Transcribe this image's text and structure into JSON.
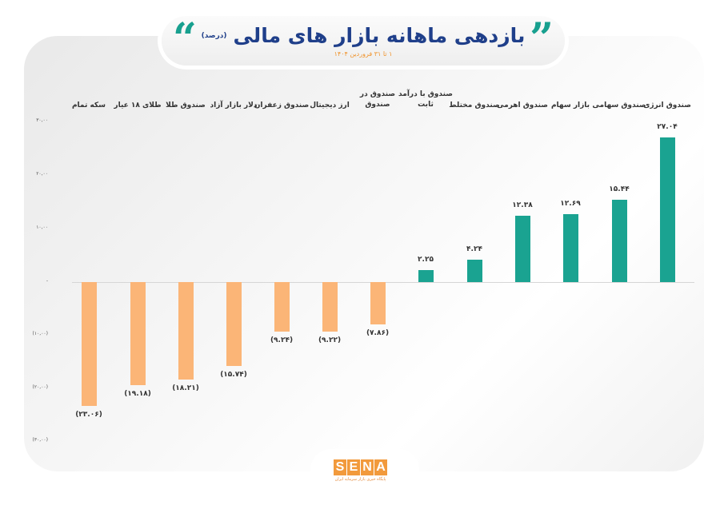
{
  "header": {
    "title": "بازدهی ماهانه بازار های مالی",
    "unit": "(درصد)",
    "subtitle": "۱ تا ۳۱ فروردین ۱۴۰۴",
    "quote_icon": "quote-marks-icon"
  },
  "colors": {
    "positive": "#1aa391",
    "negative": "#fbb577",
    "title": "#1f3f8a",
    "accent": "#f0932b"
  },
  "y_ticks": [
    "۳۰,۰۰",
    "۲۰,۰۰",
    "۱۰,۰۰",
    "-",
    "(۱۰,۰۰)",
    "(۲۰,۰۰)",
    "(۳۰,۰۰)"
  ],
  "bars": [
    {
      "label": "سکه تمام",
      "value_label": "(۲۳.۰۶)"
    },
    {
      "label": "طلای ۱۸ عیار",
      "value_label": "(۱۹.۱۸)"
    },
    {
      "label": "صندوق طلا",
      "value_label": "(۱۸.۲۱)"
    },
    {
      "label": "دلار بازار آزاد",
      "value_label": "(۱۵.۷۴)"
    },
    {
      "label": "صندوق زعفران",
      "value_label": "(۹.۲۴)"
    },
    {
      "label": "ارز دیجیتال",
      "value_label": "(۹.۲۲)"
    },
    {
      "label": "صندوق در صندوق",
      "value_label": "(۷.۸۶)"
    },
    {
      "label": "صندوق با درآمد ثابت",
      "value_label": "۲.۲۵"
    },
    {
      "label": "صندوق مختلط",
      "value_label": "۴.۲۴"
    },
    {
      "label": "صندوق اهرمی",
      "value_label": "۱۲.۳۸"
    },
    {
      "label": "بازار سهام",
      "value_label": "۱۲.۶۹"
    },
    {
      "label": "صندوق سهامی",
      "value_label": "۱۵.۴۴"
    },
    {
      "label": "صندوق انرژی",
      "value_label": "۲۷.۰۴"
    }
  ],
  "logo": {
    "letters": [
      "S",
      "E",
      "N",
      "A"
    ],
    "tagline": "پایگاه خبری بازار سرمایه ایران"
  },
  "chart_data": {
    "type": "bar",
    "title": "بازدهی ماهانه بازار های مالی (درصد)",
    "subtitle": "۱ تا ۳۱ فروردین ۱۴۰۴",
    "categories": [
      "سکه تمام",
      "طلای ۱۸ عیار",
      "صندوق طلا",
      "دلار بازار آزاد",
      "صندوق زعفران",
      "ارز دیجیتال",
      "صندوق در صندوق",
      "صندوق با درآمد ثابت",
      "صندوق مختلط",
      "صندوق اهرمی",
      "بازار سهام",
      "صندوق سهامی",
      "صندوق انرژی"
    ],
    "values": [
      -23.06,
      -19.18,
      -18.21,
      -15.74,
      -9.24,
      -9.22,
      -7.86,
      2.25,
      4.24,
      12.38,
      12.69,
      15.44,
      27.04
    ],
    "xlabel": "",
    "ylabel": "درصد",
    "ylim": [
      -30,
      30
    ],
    "yticks": [
      30,
      20,
      10,
      0,
      -10,
      -20,
      -30
    ],
    "grid": false,
    "legend": null,
    "category_label_position": "top"
  }
}
